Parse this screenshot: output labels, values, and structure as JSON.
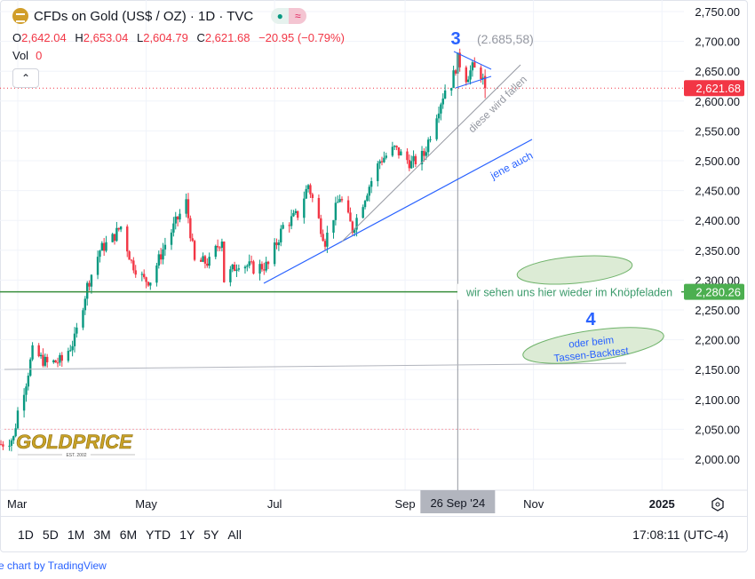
{
  "header": {
    "symbol_title": "CFDs on Gold (US$ / OZ) · 1D · TVC",
    "open_label": "O",
    "open": "2,642.04",
    "high_label": "H",
    "high": "2,653.04",
    "low_label": "L",
    "low": "2,604.79",
    "close_label": "C",
    "close": "2,621.68",
    "change": "−20.95 (−0.79%)",
    "vol_label": "Vol",
    "vol": "0",
    "collapse_icon": "chevron-up-icon",
    "status_icons": [
      "market-open-dot-icon",
      "delayed-data-icon"
    ]
  },
  "chart_data": {
    "type": "candlestick",
    "symbol": "CFDs on Gold (US$ / OZ)",
    "interval": "1D",
    "ylim": [
      1950,
      2770
    ],
    "y_ticks": [
      "2,750.00",
      "2,700.00",
      "2,650.00",
      "2,600.00",
      "2,550.00",
      "2,500.00",
      "2,450.00",
      "2,400.00",
      "2,350.00",
      "2,300.00",
      "2,250.00",
      "2,200.00",
      "2,150.00",
      "2,100.00",
      "2,050.00",
      "2,000.00"
    ],
    "y_tick_values": [
      2750,
      2700,
      2650,
      2600,
      2550,
      2500,
      2450,
      2400,
      2350,
      2300,
      2250,
      2200,
      2150,
      2100,
      2050,
      2000
    ],
    "x_ticks": [
      "Mar",
      "May",
      "Jul",
      "Sep",
      "Nov",
      "2025"
    ],
    "x_tick_dates": [
      "2024-03-01",
      "2024-05-01",
      "2024-07-01",
      "2024-09-01",
      "2024-11-01",
      "2025-01-01"
    ],
    "xlim": [
      "2024-02-22",
      "2025-02-10"
    ],
    "crosshair_label": "26 Sep '24",
    "crosshair_date": "2024-09-26",
    "last_price_label": "2,621.68",
    "last_price": 2621.68,
    "level_label": "2,280.26",
    "level_price": 2280.26,
    "close_path": [
      [
        "2024-02-22",
        2025
      ],
      [
        "2024-02-28",
        2035
      ],
      [
        "2024-03-01",
        2080
      ],
      [
        "2024-03-05",
        2130
      ],
      [
        "2024-03-08",
        2180
      ],
      [
        "2024-03-15",
        2160
      ],
      [
        "2024-03-22",
        2165
      ],
      [
        "2024-03-28",
        2200
      ],
      [
        "2024-04-03",
        2290
      ],
      [
        "2024-04-09",
        2350
      ],
      [
        "2024-04-15",
        2370
      ],
      [
        "2024-04-19",
        2390
      ],
      [
        "2024-04-24",
        2330
      ],
      [
        "2024-04-30",
        2300
      ],
      [
        "2024-05-03",
        2300
      ],
      [
        "2024-05-10",
        2360
      ],
      [
        "2024-05-17",
        2410
      ],
      [
        "2024-05-20",
        2430
      ],
      [
        "2024-05-24",
        2330
      ],
      [
        "2024-05-31",
        2330
      ],
      [
        "2024-06-06",
        2370
      ],
      [
        "2024-06-07",
        2300
      ],
      [
        "2024-06-14",
        2330
      ],
      [
        "2024-06-21",
        2320
      ],
      [
        "2024-06-28",
        2325
      ],
      [
        "2024-07-05",
        2390
      ],
      [
        "2024-07-12",
        2410
      ],
      [
        "2024-07-17",
        2460
      ],
      [
        "2024-07-22",
        2400
      ],
      [
        "2024-07-25",
        2365
      ],
      [
        "2024-08-01",
        2440
      ],
      [
        "2024-08-07",
        2385
      ],
      [
        "2024-08-14",
        2450
      ],
      [
        "2024-08-20",
        2500
      ],
      [
        "2024-08-27",
        2520
      ],
      [
        "2024-09-04",
        2495
      ],
      [
        "2024-09-10",
        2510
      ],
      [
        "2024-09-16",
        2580
      ],
      [
        "2024-09-20",
        2620
      ],
      [
        "2024-09-23",
        2630
      ],
      [
        "2024-09-26",
        2670
      ],
      [
        "2024-09-30",
        2640
      ],
      [
        "2024-10-03",
        2655
      ],
      [
        "2024-10-07",
        2645
      ],
      [
        "2024-10-09",
        2621.68
      ]
    ],
    "colors": {
      "up": "#089981",
      "down": "#f23645"
    }
  },
  "annotations": {
    "wave3_label": "3",
    "wave3_price": "(2.685,58)",
    "wave4_label": "4",
    "gray_line_text": "diese wird fallen",
    "blue_line_text": "jene auch",
    "level_text": "wir sehen uns hier wieder im Knöpfeladen",
    "ellipse_text_line1": "oder beim",
    "ellipse_text_line2": "Tassen-Backtest",
    "colors": {
      "blue": "#2962ff",
      "green": "#388e3c",
      "ellipse_fill": "#dcebd5",
      "gray": "#9598a1"
    }
  },
  "watermark": {
    "text": "GOLDPRICE",
    "subtext": "EST. 2002"
  },
  "toolbar": {
    "ranges": [
      "1D",
      "5D",
      "1M",
      "3M",
      "6M",
      "YTD",
      "1Y",
      "5Y",
      "All"
    ],
    "time": "17:08:11 (UTC-4)",
    "settings_icon": "gear-icon"
  },
  "footer": {
    "credit": "e chart by TradingView"
  }
}
